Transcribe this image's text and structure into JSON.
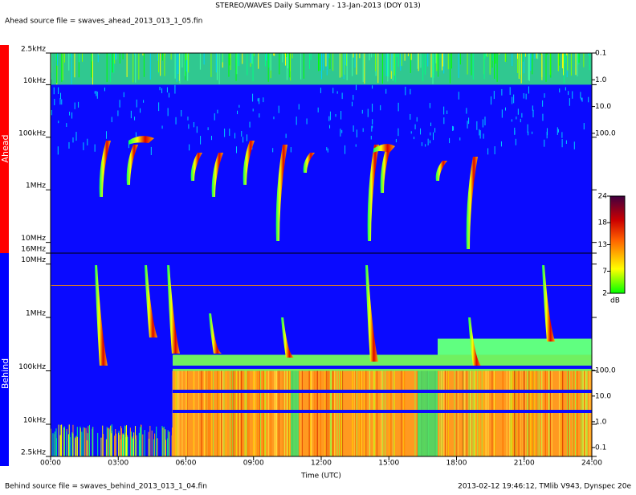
{
  "title": "STEREO/WAVES Daily Summary - 13-Jan-2013 (DOY 013)",
  "ahead_source": "Ahead source file = swaves_ahead_2013_013_1_05.fin",
  "behind_source": "Behind source file = swaves_behind_2013_013_1_04.fin",
  "footer": "2013-02-12 19:46:12, TMlib V943, Dynspec 20e",
  "colorbar": {
    "lim": [
      2,
      24
    ],
    "ticks": [
      2,
      7,
      13,
      18,
      24
    ],
    "unit": "dB"
  },
  "chart_data": [
    {
      "type": "spectrogram",
      "panel_label": "Ahead",
      "log_y": true,
      "ylim": [
        16000,
        2.5
      ],
      "yticks": [
        {
          "value": 2.5,
          "label": "2.5kHz"
        },
        {
          "value": 10,
          "label": "10kHz"
        },
        {
          "value": 100,
          "label": "100kHz"
        },
        {
          "value": 1000,
          "label": "1MHz"
        },
        {
          "value": 10000,
          "label": "10MHz"
        },
        {
          "value": 16000,
          "label": "16MHz"
        }
      ],
      "y2lim": [
        3000000,
        0.1
      ],
      "y2ticks": [
        0.1,
        1.0,
        10.0,
        100.0
      ]
    },
    {
      "type": "spectrogram",
      "panel_label": "Behind",
      "log_y": true,
      "x_label": "Time (UTC)",
      "xlim": [
        0,
        24
      ],
      "xticks": [
        {
          "value": 0,
          "label": "00:00"
        },
        {
          "value": 3,
          "label": "03:00"
        },
        {
          "value": 6,
          "label": "06:00"
        },
        {
          "value": 9,
          "label": "09:00"
        },
        {
          "value": 12,
          "label": "12:00"
        },
        {
          "value": 15,
          "label": "15:00"
        },
        {
          "value": 18,
          "label": "18:00"
        },
        {
          "value": 21,
          "label": "21:00"
        },
        {
          "value": 24,
          "label": "24:00"
        }
      ],
      "ylim": [
        2.5,
        16000
      ],
      "yticks": [
        {
          "value": 10000,
          "label": "10MHz"
        },
        {
          "value": 1000,
          "label": "1MHz"
        },
        {
          "value": 100,
          "label": "100kHz"
        },
        {
          "value": 10,
          "label": "10kHz"
        },
        {
          "value": 2.5,
          "label": "2.5kHz"
        }
      ],
      "y2lim": [
        0.045,
        3600000
      ],
      "y2ticks": [
        100.0,
        10.0,
        1.0,
        0.1
      ]
    }
  ]
}
